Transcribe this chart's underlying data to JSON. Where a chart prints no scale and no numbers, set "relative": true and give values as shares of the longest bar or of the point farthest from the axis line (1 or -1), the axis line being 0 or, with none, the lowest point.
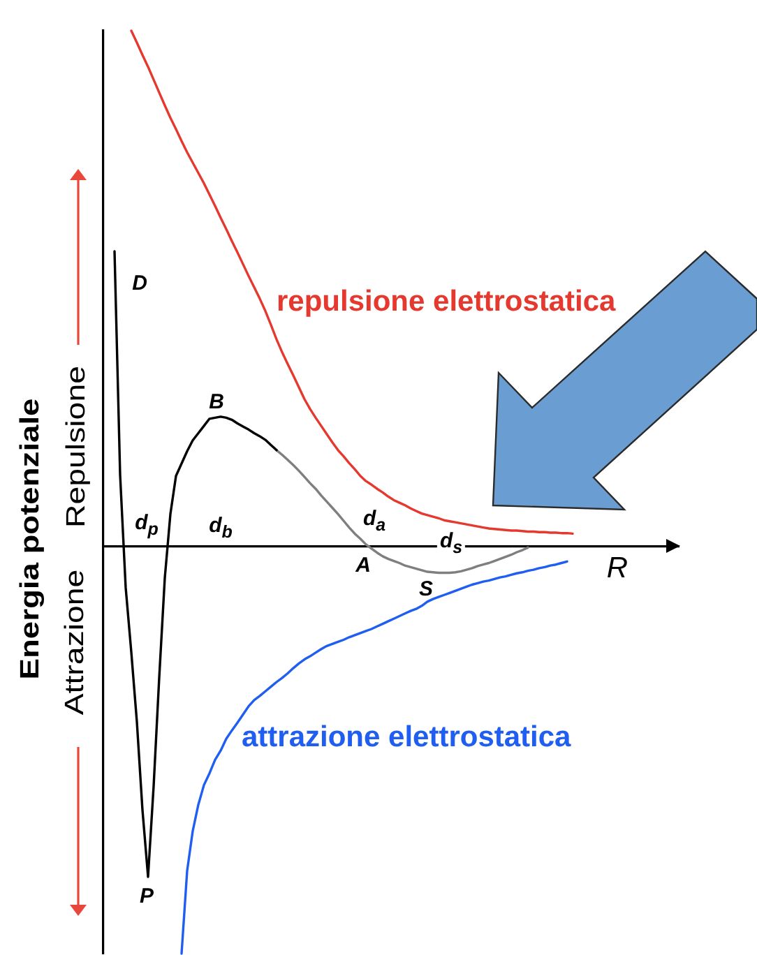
{
  "chart_data": {
    "type": "line",
    "relative": true,
    "marker": "none",
    "xlabel": "R",
    "ylabel": "Energia potenziale",
    "categories": [
      null,
      null,
      null,
      null,
      null,
      null,
      null,
      null,
      null,
      null,
      null,
      null,
      null,
      null,
      null,
      null,
      null,
      null,
      null,
      null,
      null,
      null,
      null,
      null,
      null,
      null,
      null,
      null,
      null,
      null,
      null,
      null,
      null,
      null,
      null,
      null,
      null,
      null,
      null,
      null,
      null,
      null,
      null,
      null,
      null,
      null,
      null,
      null,
      null,
      null,
      null,
      null,
      null,
      null,
      null,
      null,
      null,
      null,
      null,
      null,
      null,
      null,
      null,
      null,
      null,
      null,
      null,
      null,
      null,
      null,
      null,
      null,
      null,
      null,
      null,
      null,
      null,
      null,
      null,
      null,
      null,
      null,
      null,
      null,
      null,
      null,
      null,
      null,
      null,
      null,
      null,
      null,
      null,
      null,
      null,
      null,
      null,
      null,
      null,
      null,
      null,
      null,
      null,
      null
    ],
    "series": [
      {
        "name": "repulsione elettrostatica",
        "color": "#e5392f",
        "values": [
          null,
          null,
          null,
          null,
          null,
          1,
          0.977,
          0.953,
          0.93,
          0.905,
          0.88,
          0.855,
          0.831,
          0.809,
          0.786,
          0.764,
          0.744,
          0.724,
          0.704,
          0.682,
          0.66,
          0.637,
          0.615,
          0.592,
          0.57,
          0.547,
          0.524,
          0.502,
          0.48,
          0.456,
          0.429,
          0.401,
          0.376,
          0.353,
          0.331,
          0.308,
          0.285,
          0.266,
          0.249,
          0.233,
          0.217,
          0.201,
          0.186,
          0.174,
          0.161,
          0.149,
          0.136,
          0.126,
          0.119,
          0.111,
          0.104,
          0.096,
          0.089,
          0.084,
          0.079,
          0.073,
          0.068,
          0.063,
          0.06,
          0.057,
          0.054,
          0.05,
          0.048,
          0.046,
          0.044,
          0.042,
          0.04,
          0.038,
          0.036,
          0.034,
          0.033,
          0.032,
          0.031,
          0.03,
          0.03,
          0.029,
          0.028,
          0.028,
          0.027,
          0.027,
          0.026,
          0.026,
          0.025,
          0.025,
          0.024,
          null,
          null,
          null,
          null,
          null,
          null,
          null,
          null,
          null,
          null,
          null,
          null,
          null,
          null,
          null,
          null,
          null,
          null,
          null
        ]
      },
      {
        "name": "attrazione elettrostatica",
        "color": "#1f5ef0",
        "values": [
          null,
          null,
          null,
          null,
          null,
          null,
          null,
          null,
          null,
          null,
          null,
          null,
          null,
          null,
          -0.791,
          -0.63,
          -0.553,
          -0.502,
          -0.464,
          -0.441,
          -0.415,
          -0.397,
          -0.374,
          -0.358,
          -0.343,
          -0.327,
          -0.311,
          -0.299,
          -0.291,
          -0.282,
          -0.273,
          -0.264,
          -0.256,
          -0.247,
          -0.237,
          -0.228,
          -0.22,
          -0.214,
          -0.207,
          -0.2,
          -0.194,
          -0.19,
          -0.186,
          -0.182,
          -0.177,
          -0.173,
          -0.169,
          -0.165,
          -0.161,
          -0.156,
          -0.151,
          -0.146,
          -0.141,
          -0.136,
          -0.131,
          -0.126,
          -0.122,
          -0.116,
          -0.108,
          -0.103,
          -0.099,
          -0.095,
          -0.091,
          -0.087,
          -0.083,
          -0.079,
          -0.075,
          -0.072,
          -0.069,
          -0.067,
          -0.064,
          -0.061,
          -0.059,
          -0.056,
          -0.053,
          -0.051,
          -0.048,
          -0.046,
          -0.043,
          -0.041,
          -0.038,
          -0.036,
          -0.033,
          -0.03,
          null,
          null,
          null,
          null,
          null,
          null,
          null,
          null,
          null,
          null,
          null,
          null,
          null,
          null,
          null,
          null,
          null,
          null,
          null,
          null
        ]
      },
      {
        "color": "#000000",
        "values": [
          null,
          null,
          0.572,
          0.138,
          -0.081,
          -0.206,
          -0.341,
          -0.512,
          -0.642,
          -0.466,
          -0.255,
          -0.062,
          0.062,
          0.136,
          0.16,
          0.184,
          0.205,
          0.219,
          0.233,
          0.247,
          0.249,
          0.251,
          0.249,
          0.245,
          0.238,
          0.232,
          0.226,
          0.219,
          0.213,
          0.206,
          0.196,
          0.186,
          null,
          null,
          null,
          null,
          null,
          null,
          null,
          null,
          null,
          null,
          null,
          null,
          null,
          null,
          null,
          null,
          null,
          null,
          null,
          null,
          null,
          null,
          null,
          null,
          null,
          null,
          null,
          null,
          null,
          null,
          null,
          null,
          null,
          null,
          null,
          null,
          null,
          null,
          null,
          null,
          null,
          null,
          null,
          null,
          null,
          null,
          null,
          null,
          null,
          null,
          null,
          null,
          null,
          null,
          null,
          null,
          null,
          null,
          null,
          null,
          null,
          null,
          null,
          null,
          null,
          null,
          null,
          null,
          null,
          null,
          null,
          null
        ]
      },
      {
        "color": "#7f7f7f",
        "values": [
          null,
          null,
          null,
          null,
          null,
          null,
          null,
          null,
          null,
          null,
          null,
          null,
          null,
          null,
          null,
          null,
          null,
          null,
          null,
          null,
          null,
          null,
          null,
          null,
          null,
          null,
          null,
          null,
          null,
          null,
          null,
          0.186,
          0.177,
          0.167,
          0.157,
          0.146,
          0.134,
          0.122,
          0.111,
          0.098,
          0.086,
          0.074,
          0.062,
          0.049,
          0.036,
          0.024,
          0.014,
          0.003,
          -0.005,
          -0.013,
          -0.02,
          -0.025,
          -0.029,
          -0.033,
          -0.038,
          -0.041,
          -0.044,
          -0.047,
          -0.05,
          -0.051,
          -0.052,
          -0.052,
          -0.052,
          -0.051,
          -0.049,
          -0.046,
          -0.043,
          -0.039,
          -0.036,
          -0.033,
          -0.029,
          -0.025,
          -0.021,
          -0.017,
          -0.012,
          -0.008,
          -0.003,
          null,
          null,
          null,
          null,
          null,
          null,
          null,
          null,
          null,
          null,
          null,
          null,
          null,
          null,
          null,
          null,
          null,
          null,
          null,
          null,
          null,
          null,
          null,
          null,
          null,
          null,
          null
        ]
      }
    ],
    "annotations": [
      "D",
      "B",
      "d$_{p}$",
      "d$_{b}$",
      "d$_{a}$",
      "d$_{s}$",
      "A",
      "S",
      "P",
      "Repulsione",
      "Attrazione"
    ]
  }
}
